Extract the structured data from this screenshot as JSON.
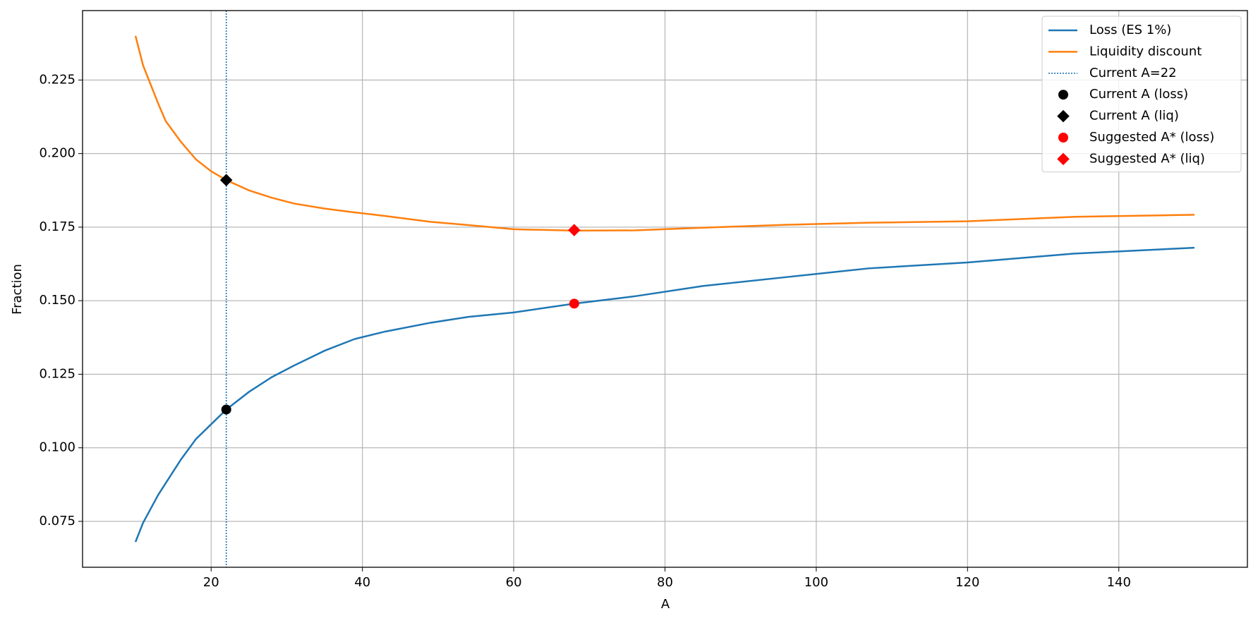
{
  "chart_data": {
    "type": "line",
    "xlabel": "A",
    "ylabel": "Fraction",
    "x": [
      10,
      11,
      13,
      14,
      16,
      18,
      20,
      22,
      25,
      28,
      31,
      35,
      39,
      43,
      49,
      54,
      60,
      68,
      76,
      85,
      96,
      107,
      120,
      134,
      150
    ],
    "series": [
      {
        "name": "Loss (ES 1%)",
        "color": "#1f77b4",
        "values": [
          0.068,
          0.0745,
          0.084,
          0.088,
          0.096,
          0.103,
          0.108,
          0.113,
          0.119,
          0.124,
          0.128,
          0.133,
          0.137,
          0.1395,
          0.1425,
          0.1445,
          0.146,
          0.149,
          0.1515,
          0.155,
          0.158,
          0.161,
          0.163,
          0.166,
          0.168
        ]
      },
      {
        "name": "Liquidity discount",
        "color": "#ff7f0e",
        "values": [
          0.24,
          0.23,
          0.217,
          0.211,
          0.204,
          0.198,
          0.194,
          0.191,
          0.1875,
          0.185,
          0.183,
          0.1813,
          0.18,
          0.1788,
          0.1768,
          0.1757,
          0.1743,
          0.1738,
          0.1739,
          0.1748,
          0.1758,
          0.1765,
          0.177,
          0.1785,
          0.1792
        ]
      }
    ],
    "vline": {
      "name": "Current A=22",
      "x": 22,
      "color": "#1f77b4",
      "style": "dotted"
    },
    "markers": [
      {
        "name": "Current A (loss)",
        "x": 22,
        "y": 0.113,
        "color": "#000000",
        "shape": "circle"
      },
      {
        "name": "Current A (liq)",
        "x": 22,
        "y": 0.191,
        "color": "#000000",
        "shape": "diamond"
      },
      {
        "name": "Suggested A* (loss)",
        "x": 68,
        "y": 0.149,
        "color": "#ff0000",
        "shape": "circle"
      },
      {
        "name": "Suggested A* (liq)",
        "x": 68,
        "y": 0.174,
        "color": "#ff0000",
        "shape": "diamond"
      }
    ],
    "xlim": [
      3,
      157
    ],
    "xticks": [
      20,
      40,
      60,
      80,
      100,
      120,
      140
    ],
    "ylim": [
      0.0594,
      0.2486
    ],
    "yticks": [
      0.075,
      {
        "value": 0.1,
        "label": "0.100"
      },
      0.125,
      {
        "value": 0.15,
        "label": "0.150"
      },
      0.175,
      {
        "value": 0.2,
        "label": "0.200"
      },
      0.225
    ],
    "grid": true,
    "legend": "upper right"
  }
}
